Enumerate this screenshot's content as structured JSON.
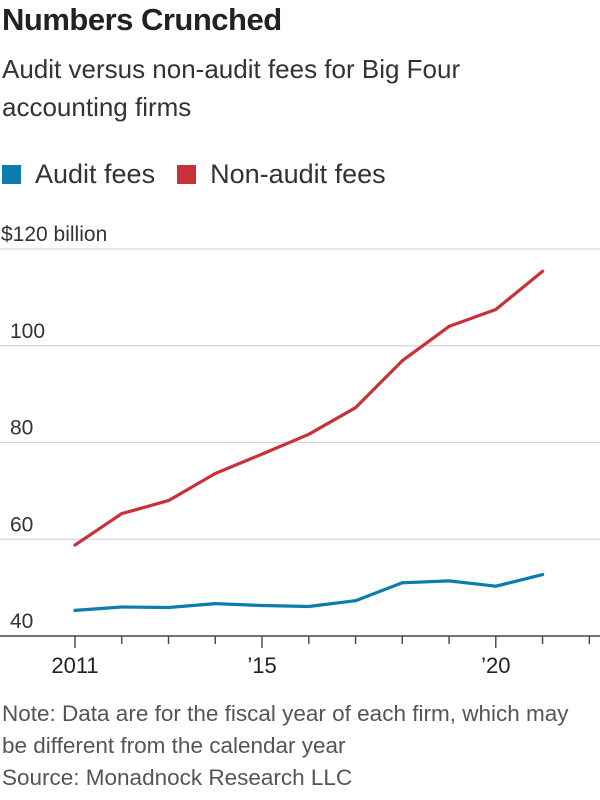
{
  "chart_data": {
    "type": "line",
    "title": "Numbers Crunched",
    "subtitle": "Audit versus non-audit fees for Big Four accounting firms",
    "x": [
      2011,
      2012,
      2013,
      2014,
      2015,
      2016,
      2017,
      2018,
      2019,
      2020,
      2021
    ],
    "x_tick_values": [
      2011,
      2015,
      2020
    ],
    "x_tick_labels": [
      "2011",
      "’15",
      "’20"
    ],
    "y_tick_values": [
      40,
      60,
      80,
      100,
      120
    ],
    "y_tick_labels": [
      "40",
      "60",
      "80",
      "100",
      "$120 billion"
    ],
    "ylim": [
      40,
      120
    ],
    "xlim": [
      2011,
      2022.1
    ],
    "grid": true,
    "legend_position": "top-left",
    "series": [
      {
        "name": "Audit fees",
        "color": "#0a7cad",
        "values": [
          45.3,
          46.0,
          45.9,
          46.7,
          46.3,
          46.1,
          47.3,
          51.0,
          51.4,
          50.3,
          52.7
        ]
      },
      {
        "name": "Non-audit fees",
        "color": "#c9313a",
        "values": [
          58.8,
          65.3,
          68.0,
          73.6,
          77.6,
          81.7,
          87.2,
          96.9,
          104.0,
          107.5,
          115.4
        ]
      }
    ],
    "note": "Note: Data are for the fiscal year of each firm, which may be different from the calendar year",
    "source": "Source: Monadnock Research LLC"
  }
}
